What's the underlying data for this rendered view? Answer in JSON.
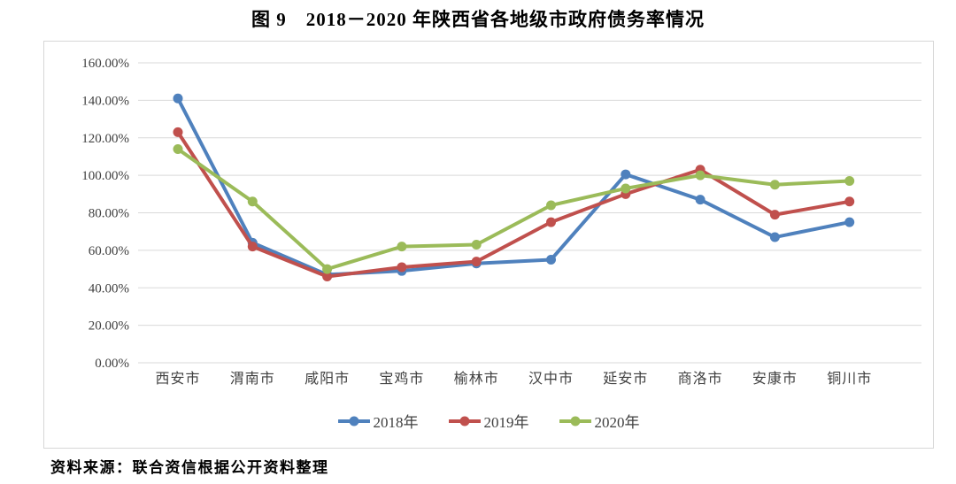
{
  "page": {
    "title": "图 9　2018－2020 年陕西省各地级市政府债务率情况",
    "source_note": "资料来源：联合资信根据公开资料整理"
  },
  "chart_data": {
    "type": "line",
    "title": "图 9　2018－2020 年陕西省各地级市政府债务率情况",
    "xlabel": "",
    "ylabel": "",
    "categories": [
      "西安市",
      "渭南市",
      "咸阳市",
      "宝鸡市",
      "榆林市",
      "汉中市",
      "延安市",
      "商洛市",
      "安康市",
      "铜川市"
    ],
    "series": [
      {
        "name": "2018年",
        "color": "#4F81BD",
        "values": [
          141,
          64,
          47,
          49,
          53,
          55,
          100.5,
          87,
          67,
          75
        ]
      },
      {
        "name": "2019年",
        "color": "#C0504D",
        "values": [
          123,
          62,
          46,
          51,
          54,
          75,
          90,
          103,
          79,
          86
        ]
      },
      {
        "name": "2020年",
        "color": "#9BBB59",
        "values": [
          114,
          86,
          50,
          62,
          63,
          84,
          93,
          100,
          95,
          97
        ]
      }
    ],
    "unit": "%",
    "ylim": [
      0,
      160
    ],
    "ytick_step": 20,
    "ytick_labels": [
      "0.00%",
      "20.00%",
      "40.00%",
      "60.00%",
      "80.00%",
      "100.00%",
      "120.00%",
      "140.00%",
      "160.00%"
    ],
    "grid": true,
    "gridline_color": "#d9d9d9",
    "legend_position": "bottom"
  }
}
